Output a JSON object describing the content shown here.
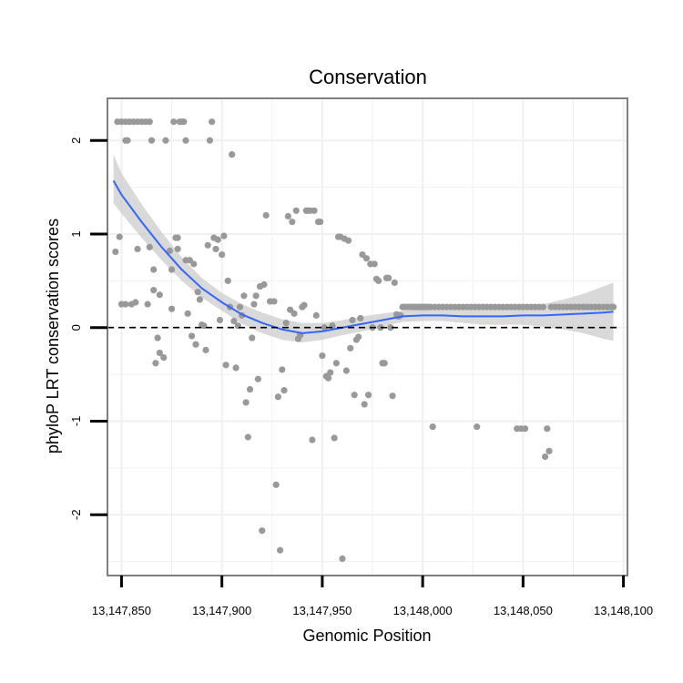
{
  "chart_data": {
    "type": "scatter",
    "title": "Conservation",
    "xlabel": "Genomic Position",
    "ylabel": "phyloP LRT conservation scores",
    "xlim": [
      13147843,
      13148102
    ],
    "ylim": [
      -2.65,
      2.45
    ],
    "xticks": [
      13147850,
      13147900,
      13147950,
      13148000,
      13148050,
      13148100
    ],
    "xtick_labels": [
      "13,147,850",
      "13,147,900",
      "13,147,950",
      "13,148,000",
      "13,148,050",
      "13,148,100"
    ],
    "yticks": [
      -2,
      -1,
      0,
      1,
      2
    ],
    "ytick_labels": [
      "-2",
      "-1",
      "0",
      "1",
      "2"
    ],
    "reference_line": {
      "y": 0,
      "style": "dashed"
    },
    "colors": {
      "points": "#999999",
      "smooth": "#3366ff",
      "ribbon": "#cccccc",
      "panel_border": "#7f7f7f",
      "grid": "#f0f0f0"
    },
    "points": [
      [
        13147848,
        2.2
      ],
      [
        13147849,
        0.97
      ],
      [
        13147847,
        0.81
      ],
      [
        13147850,
        0.25
      ],
      [
        13147852,
        0.25
      ],
      [
        13147850,
        2.2
      ],
      [
        13147852,
        2.2
      ],
      [
        13147854,
        2.2
      ],
      [
        13147856,
        2.2
      ],
      [
        13147858,
        2.2
      ],
      [
        13147860,
        2.2
      ],
      [
        13147862,
        2.2
      ],
      [
        13147864,
        2.2
      ],
      [
        13147852,
        2.0
      ],
      [
        13147853,
        2.0
      ],
      [
        13147855,
        0.25
      ],
      [
        13147857,
        0.27
      ],
      [
        13147858,
        0.84
      ],
      [
        13147863,
        0.25
      ],
      [
        13147864,
        0.86
      ],
      [
        13147865,
        2.0
      ],
      [
        13147866,
        0.62
      ],
      [
        13147866,
        0.4
      ],
      [
        13147867,
        -0.38
      ],
      [
        13147868,
        -0.11
      ],
      [
        13147869,
        0.35
      ],
      [
        13147869,
        -0.27
      ],
      [
        13147871,
        -0.32
      ],
      [
        13147872,
        2.0
      ],
      [
        13147874,
        0.82
      ],
      [
        13147875,
        0.62
      ],
      [
        13147875,
        0.2
      ],
      [
        13147876,
        2.2
      ],
      [
        13147877,
        0.96
      ],
      [
        13147878,
        0.96
      ],
      [
        13147878,
        0.84
      ],
      [
        13147879,
        2.2
      ],
      [
        13147880,
        2.2
      ],
      [
        13147881,
        2.2
      ],
      [
        13147882,
        2.0
      ],
      [
        13147882,
        0.72
      ],
      [
        13147883,
        0.15
      ],
      [
        13147884,
        0.72
      ],
      [
        13147885,
        -0.09
      ],
      [
        13147886,
        0.68
      ],
      [
        13147887,
        -0.18
      ],
      [
        13147888,
        0.38
      ],
      [
        13147889,
        0.3
      ],
      [
        13147890,
        0.03
      ],
      [
        13147891,
        0.02
      ],
      [
        13147892,
        -0.24
      ],
      [
        13147893,
        0.88
      ],
      [
        13147894,
        2.0
      ],
      [
        13147895,
        2.2
      ],
      [
        13147896,
        0.96
      ],
      [
        13147897,
        0.84
      ],
      [
        13147898,
        0.94
      ],
      [
        13147899,
        0.08
      ],
      [
        13147900,
        0.78
      ],
      [
        13147901,
        0.98
      ],
      [
        13147902,
        -0.4
      ],
      [
        13147903,
        0.5
      ],
      [
        13147904,
        0.22
      ],
      [
        13147905,
        1.85
      ],
      [
        13147906,
        0.07
      ],
      [
        13147907,
        -0.43
      ],
      [
        13147908,
        0.02
      ],
      [
        13147909,
        0.22
      ],
      [
        13147910,
        0.13
      ],
      [
        13147911,
        0.34
      ],
      [
        13147912,
        -0.8
      ],
      [
        13147913,
        -1.17
      ],
      [
        13147914,
        -0.66
      ],
      [
        13147915,
        -0.11
      ],
      [
        13147916,
        0.25
      ],
      [
        13147917,
        0.34
      ],
      [
        13147918,
        -0.55
      ],
      [
        13147919,
        0.44
      ],
      [
        13147920,
        -2.17
      ],
      [
        13147921,
        0.46
      ],
      [
        13147922,
        1.2
      ],
      [
        13147924,
        0.28
      ],
      [
        13147926,
        0.28
      ],
      [
        13147927,
        -1.68
      ],
      [
        13147928,
        -0.74
      ],
      [
        13147929,
        -2.38
      ],
      [
        13147930,
        -0.45
      ],
      [
        13147931,
        -0.67
      ],
      [
        13147932,
        0.05
      ],
      [
        13147933,
        1.19
      ],
      [
        13147934,
        0.19
      ],
      [
        13147935,
        1.13
      ],
      [
        13147936,
        0.15
      ],
      [
        13147937,
        1.25
      ],
      [
        13147938,
        -0.12
      ],
      [
        13147939,
        -0.08
      ],
      [
        13147940,
        0.22
      ],
      [
        13147941,
        0.24
      ],
      [
        13147942,
        1.25
      ],
      [
        13147943,
        1.25
      ],
      [
        13147944,
        1.25
      ],
      [
        13147945,
        -1.2
      ],
      [
        13147946,
        1.25
      ],
      [
        13147947,
        0.13
      ],
      [
        13147948,
        1.13
      ],
      [
        13147949,
        1.13
      ],
      [
        13147950,
        -0.3
      ],
      [
        13147951,
        0.0
      ],
      [
        13147952,
        -0.52
      ],
      [
        13147953,
        -0.54
      ],
      [
        13147954,
        -0.48
      ],
      [
        13147955,
        0.02
      ],
      [
        13147956,
        -1.18
      ],
      [
        13147957,
        -0.38
      ],
      [
        13147958,
        0.97
      ],
      [
        13147959,
        0.97
      ],
      [
        13147960,
        -2.47
      ],
      [
        13147961,
        0.95
      ],
      [
        13147962,
        -0.46
      ],
      [
        13147963,
        0.93
      ],
      [
        13147964,
        -0.22
      ],
      [
        13147965,
        0.08
      ],
      [
        13147966,
        -0.72
      ],
      [
        13147967,
        -0.13
      ],
      [
        13147968,
        -0.1
      ],
      [
        13147969,
        0.1
      ],
      [
        13147970,
        0.78
      ],
      [
        13147971,
        -0.82
      ],
      [
        13147972,
        0.74
      ],
      [
        13147973,
        -0.72
      ],
      [
        13147974,
        0.68
      ],
      [
        13147975,
        0.0
      ],
      [
        13147976,
        0.68
      ],
      [
        13147977,
        0.52
      ],
      [
        13147978,
        0.5
      ],
      [
        13147979,
        0.0
      ],
      [
        13147980,
        -0.38
      ],
      [
        13147981,
        -0.38
      ],
      [
        13147982,
        0.53
      ],
      [
        13147983,
        0.53
      ],
      [
        13147984,
        0.0
      ],
      [
        13147985,
        -0.73
      ],
      [
        13147986,
        0.48
      ],
      [
        13147987,
        0.14
      ],
      [
        13147988,
        0.12
      ],
      [
        13147989,
        0.13
      ],
      [
        13147990,
        0.22
      ],
      [
        13147991,
        0.22
      ],
      [
        13147992,
        0.22
      ],
      [
        13147993,
        0.22
      ],
      [
        13147994,
        0.22
      ],
      [
        13147995,
        0.22
      ],
      [
        13147996,
        0.22
      ],
      [
        13147997,
        0.22
      ],
      [
        13147998,
        0.22
      ],
      [
        13147999,
        0.22
      ],
      [
        13148000,
        0.22
      ],
      [
        13148001,
        0.22
      ],
      [
        13148002,
        0.22
      ],
      [
        13148003,
        0.22
      ],
      [
        13148004,
        0.22
      ],
      [
        13148005,
        -1.06
      ],
      [
        13148006,
        0.22
      ],
      [
        13148008,
        0.22
      ],
      [
        13148010,
        0.22
      ],
      [
        13148012,
        0.22
      ],
      [
        13148014,
        0.22
      ],
      [
        13148016,
        0.22
      ],
      [
        13148018,
        0.22
      ],
      [
        13148020,
        0.22
      ],
      [
        13148022,
        0.22
      ],
      [
        13148024,
        0.22
      ],
      [
        13148026,
        0.22
      ],
      [
        13148027,
        -1.06
      ],
      [
        13148028,
        0.22
      ],
      [
        13148030,
        0.22
      ],
      [
        13148032,
        0.22
      ],
      [
        13148034,
        0.22
      ],
      [
        13148036,
        0.22
      ],
      [
        13148038,
        0.22
      ],
      [
        13148040,
        0.22
      ],
      [
        13148042,
        0.22
      ],
      [
        13148044,
        0.22
      ],
      [
        13148046,
        0.22
      ],
      [
        13148047,
        -1.08
      ],
      [
        13148048,
        0.22
      ],
      [
        13148049,
        -1.08
      ],
      [
        13148050,
        0.22
      ],
      [
        13148051,
        -1.08
      ],
      [
        13148052,
        0.22
      ],
      [
        13148054,
        0.22
      ],
      [
        13148056,
        0.22
      ],
      [
        13148058,
        0.22
      ],
      [
        13148060,
        0.22
      ],
      [
        13148061,
        -1.38
      ],
      [
        13148062,
        -1.08
      ],
      [
        13148063,
        -1.32
      ],
      [
        13148064,
        0.22
      ],
      [
        13148066,
        0.22
      ],
      [
        13148068,
        0.22
      ],
      [
        13148070,
        0.22
      ],
      [
        13148072,
        0.22
      ],
      [
        13148074,
        0.22
      ],
      [
        13148076,
        0.22
      ],
      [
        13148078,
        0.22
      ],
      [
        13148080,
        0.22
      ],
      [
        13148082,
        0.22
      ],
      [
        13148084,
        0.22
      ],
      [
        13148086,
        0.22
      ],
      [
        13148088,
        0.22
      ],
      [
        13148090,
        0.22
      ],
      [
        13148092,
        0.22
      ],
      [
        13148094,
        0.22
      ],
      [
        13148095,
        0.22
      ]
    ],
    "smooth": [
      [
        13147846,
        1.57
      ],
      [
        13147850,
        1.42
      ],
      [
        13147860,
        1.13
      ],
      [
        13147870,
        0.86
      ],
      [
        13147880,
        0.62
      ],
      [
        13147890,
        0.42
      ],
      [
        13147900,
        0.27
      ],
      [
        13147910,
        0.14
      ],
      [
        13147920,
        0.05
      ],
      [
        13147930,
        -0.02
      ],
      [
        13147940,
        -0.06
      ],
      [
        13147950,
        -0.04
      ],
      [
        13147960,
        0.0
      ],
      [
        13147970,
        0.04
      ],
      [
        13147980,
        0.08
      ],
      [
        13147990,
        0.12
      ],
      [
        13148000,
        0.13
      ],
      [
        13148010,
        0.13
      ],
      [
        13148020,
        0.12
      ],
      [
        13148030,
        0.12
      ],
      [
        13148040,
        0.12
      ],
      [
        13148050,
        0.13
      ],
      [
        13148060,
        0.13
      ],
      [
        13148070,
        0.14
      ],
      [
        13148080,
        0.15
      ],
      [
        13148090,
        0.16
      ],
      [
        13148095,
        0.17
      ]
    ],
    "ribbon_lower": [
      [
        13147846,
        1.33
      ],
      [
        13147850,
        1.22
      ],
      [
        13147860,
        0.96
      ],
      [
        13147870,
        0.72
      ],
      [
        13147880,
        0.5
      ],
      [
        13147890,
        0.32
      ],
      [
        13147900,
        0.18
      ],
      [
        13147910,
        0.04
      ],
      [
        13147920,
        -0.06
      ],
      [
        13147930,
        -0.13
      ],
      [
        13147940,
        -0.16
      ],
      [
        13147950,
        -0.13
      ],
      [
        13147960,
        -0.08
      ],
      [
        13147970,
        -0.04
      ],
      [
        13147980,
        0.01
      ],
      [
        13147990,
        0.06
      ],
      [
        13148000,
        0.07
      ],
      [
        13148010,
        0.07
      ],
      [
        13148020,
        0.05
      ],
      [
        13148030,
        0.03
      ],
      [
        13148040,
        0.03
      ],
      [
        13148050,
        0.03
      ],
      [
        13148060,
        0.01
      ],
      [
        13148070,
        -0.02
      ],
      [
        13148080,
        -0.06
      ],
      [
        13148090,
        -0.12
      ],
      [
        13148095,
        -0.14
      ]
    ],
    "ribbon_upper": [
      [
        13147846,
        1.85
      ],
      [
        13147850,
        1.65
      ],
      [
        13147860,
        1.32
      ],
      [
        13147870,
        1.02
      ],
      [
        13147880,
        0.75
      ],
      [
        13147890,
        0.53
      ],
      [
        13147900,
        0.37
      ],
      [
        13147910,
        0.25
      ],
      [
        13147920,
        0.16
      ],
      [
        13147930,
        0.09
      ],
      [
        13147940,
        0.05
      ],
      [
        13147950,
        0.05
      ],
      [
        13147960,
        0.08
      ],
      [
        13147970,
        0.12
      ],
      [
        13147980,
        0.15
      ],
      [
        13147990,
        0.18
      ],
      [
        13148000,
        0.19
      ],
      [
        13148010,
        0.19
      ],
      [
        13148020,
        0.19
      ],
      [
        13148030,
        0.21
      ],
      [
        13148040,
        0.21
      ],
      [
        13148050,
        0.23
      ],
      [
        13148060,
        0.25
      ],
      [
        13148070,
        0.3
      ],
      [
        13148080,
        0.36
      ],
      [
        13148090,
        0.44
      ],
      [
        13148095,
        0.48
      ]
    ]
  }
}
